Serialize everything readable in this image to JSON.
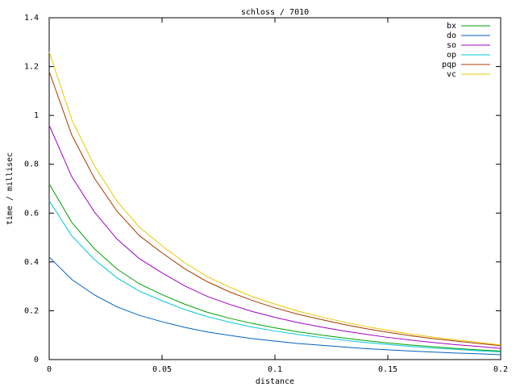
{
  "chart_data": {
    "type": "line",
    "title": "schloss / 7010",
    "x_label": "distance",
    "y_label": "time / millisec",
    "x": [
      0,
      0.01,
      0.02,
      0.03,
      0.04,
      0.05,
      0.06,
      0.07,
      0.08,
      0.09,
      0.1,
      0.11,
      0.12,
      0.13,
      0.14,
      0.15,
      0.16,
      0.17,
      0.18,
      0.19,
      0.2
    ],
    "series": [
      {
        "name": "bx",
        "color": "#00a000",
        "values": [
          0.72,
          0.562,
          0.454,
          0.371,
          0.31,
          0.266,
          0.227,
          0.194,
          0.169,
          0.148,
          0.13,
          0.114,
          0.101,
          0.089,
          0.078,
          0.068,
          0.06,
          0.053,
          0.046,
          0.04,
          0.035
        ]
      },
      {
        "name": "do",
        "color": "#0060c0",
        "values": [
          0.42,
          0.328,
          0.265,
          0.216,
          0.181,
          0.155,
          0.132,
          0.113,
          0.099,
          0.086,
          0.076,
          0.066,
          0.059,
          0.052,
          0.045,
          0.04,
          0.035,
          0.031,
          0.027,
          0.024,
          0.02
        ]
      },
      {
        "name": "so",
        "color": "#a000c0",
        "values": [
          0.96,
          0.749,
          0.605,
          0.494,
          0.413,
          0.355,
          0.302,
          0.259,
          0.226,
          0.197,
          0.173,
          0.152,
          0.134,
          0.118,
          0.104,
          0.091,
          0.08,
          0.07,
          0.061,
          0.054,
          0.046
        ]
      },
      {
        "name": "op",
        "color": "#00c8d8",
        "values": [
          0.65,
          0.507,
          0.41,
          0.335,
          0.28,
          0.241,
          0.205,
          0.176,
          0.153,
          0.133,
          0.117,
          0.103,
          0.091,
          0.08,
          0.07,
          0.062,
          0.054,
          0.047,
          0.042,
          0.036,
          0.031
        ]
      },
      {
        "name": "pqp",
        "color": "#a83800",
        "values": [
          1.18,
          0.92,
          0.743,
          0.608,
          0.507,
          0.437,
          0.372,
          0.319,
          0.277,
          0.242,
          0.212,
          0.186,
          0.165,
          0.145,
          0.127,
          0.112,
          0.098,
          0.086,
          0.076,
          0.066,
          0.057
        ]
      },
      {
        "name": "vc",
        "color": "#e8c800",
        "values": [
          1.26,
          0.983,
          0.794,
          0.649,
          0.542,
          0.466,
          0.397,
          0.34,
          0.296,
          0.258,
          0.227,
          0.199,
          0.176,
          0.155,
          0.136,
          0.12,
          0.105,
          0.092,
          0.081,
          0.071,
          0.06
        ]
      }
    ],
    "xlim": [
      0,
      0.2
    ],
    "xticks": [
      0,
      0.05,
      0.1,
      0.15,
      0.2
    ],
    "ylim": [
      0,
      1.4
    ],
    "yticks": [
      0,
      0.2,
      0.4,
      0.6,
      0.8,
      1,
      1.2,
      1.4
    ],
    "legend": "top-right",
    "grid": false
  }
}
